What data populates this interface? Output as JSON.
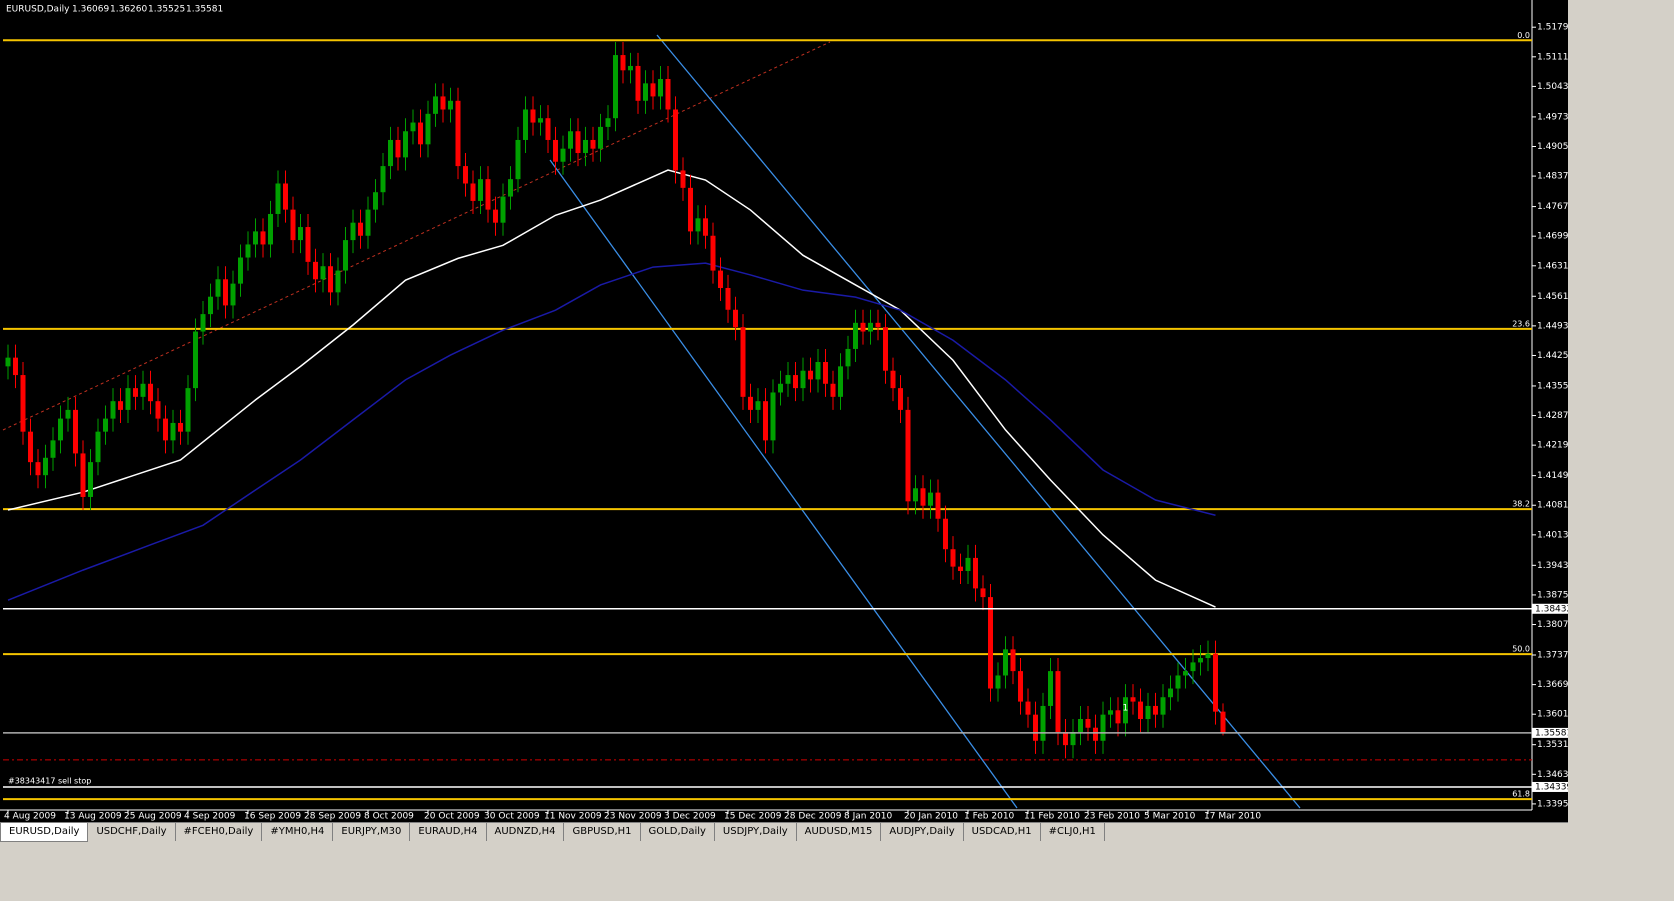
{
  "header": {
    "symbol": "EURUSD,Daily",
    "ohlc": [
      "1.36069",
      "1.36260",
      "1.35525",
      "1.35581"
    ]
  },
  "tabs": [
    "EURUSD,Daily",
    "USDCHF,Daily",
    "#FCEH0,Daily",
    "#YMH0,H4",
    "EURJPY,M30",
    "EURAUD,H4",
    "AUDNZD,H4",
    "GBPUSD,H1",
    "GOLD,Daily",
    "USDJPY,Daily",
    "AUDUSD,M15",
    "AUDJPY,Daily",
    "USDCAD,H1",
    "#CLJ0,H1"
  ],
  "active_tab": 0,
  "chart_data": {
    "type": "candlestick",
    "categories": [
      "4 Aug 2009",
      null,
      null,
      null,
      null,
      null,
      null,
      null,
      "13 Aug 2009",
      null,
      null,
      null,
      null,
      null,
      null,
      null,
      "25 Aug 2009",
      null,
      null,
      null,
      null,
      null,
      null,
      null,
      "4 Sep 2009",
      null,
      null,
      null,
      null,
      null,
      null,
      null,
      "16 Sep 2009",
      null,
      null,
      null,
      null,
      null,
      null,
      null,
      "28 Sep 2009",
      null,
      null,
      null,
      null,
      null,
      null,
      null,
      "8 Oct 2009",
      null,
      null,
      null,
      null,
      null,
      null,
      null,
      "20 Oct 2009",
      null,
      null,
      null,
      null,
      null,
      null,
      null,
      "30 Oct 2009",
      null,
      null,
      null,
      null,
      null,
      null,
      null,
      "11 Nov 2009",
      null,
      null,
      null,
      null,
      null,
      null,
      null,
      "23 Nov 2009",
      null,
      null,
      null,
      null,
      null,
      null,
      null,
      "3 Dec 2009",
      null,
      null,
      null,
      null,
      null,
      null,
      null,
      "15 Dec 2009",
      null,
      null,
      null,
      null,
      null,
      null,
      null,
      "28 Dec 2009",
      null,
      null,
      null,
      null,
      null,
      null,
      null,
      "8 Jan 2010",
      null,
      null,
      null,
      null,
      null,
      null,
      null,
      "20 Jan 2010",
      null,
      null,
      null,
      null,
      null,
      null,
      null,
      "1 Feb 2010",
      null,
      null,
      null,
      null,
      null,
      null,
      null,
      "11 Feb 2010",
      null,
      null,
      null,
      null,
      null,
      null,
      null,
      "23 Feb 2010",
      null,
      null,
      null,
      null,
      null,
      null,
      null,
      "5 Mar 2010",
      null,
      null,
      null,
      null,
      null,
      null,
      null,
      "17 Mar 2010",
      null,
      null
    ],
    "open": [
      1.44,
      1.442,
      1.438,
      1.425,
      1.418,
      1.415,
      1.419,
      1.423,
      1.428,
      1.43,
      1.42,
      1.41,
      1.418,
      1.425,
      1.428,
      1.432,
      1.43,
      1.435,
      1.433,
      1.436,
      1.432,
      1.428,
      1.423,
      1.427,
      1.425,
      1.435,
      1.448,
      1.452,
      1.456,
      1.46,
      1.454,
      1.459,
      1.465,
      1.468,
      1.471,
      1.468,
      1.475,
      1.482,
      1.476,
      1.469,
      1.472,
      1.464,
      1.46,
      1.463,
      1.457,
      1.462,
      1.469,
      1.473,
      1.47,
      1.476,
      1.48,
      1.486,
      1.492,
      1.488,
      1.494,
      1.496,
      1.491,
      1.498,
      1.502,
      1.499,
      1.501,
      1.486,
      1.482,
      1.478,
      1.483,
      1.476,
      1.473,
      1.479,
      1.483,
      1.492,
      1.499,
      1.496,
      1.497,
      1.492,
      1.487,
      1.49,
      1.494,
      1.489,
      1.492,
      1.49,
      1.495,
      1.497,
      1.5115,
      1.508,
      1.509,
      1.501,
      1.505,
      1.502,
      1.506,
      1.499,
      1.485,
      1.481,
      1.471,
      1.474,
      1.47,
      1.462,
      1.458,
      1.453,
      1.449,
      1.433,
      1.43,
      1.432,
      1.423,
      1.434,
      1.436,
      1.438,
      1.435,
      1.439,
      1.437,
      1.441,
      1.436,
      1.433,
      1.44,
      1.444,
      1.45,
      1.448,
      1.45,
      1.449,
      1.439,
      1.435,
      1.43,
      1.409,
      1.412,
      1.408,
      1.411,
      1.405,
      1.398,
      1.394,
      1.393,
      1.396,
      1.389,
      1.387,
      1.366,
      1.369,
      1.375,
      1.37,
      1.363,
      1.36,
      1.354,
      1.362,
      1.37,
      1.356,
      1.353,
      1.356,
      1.359,
      1.357,
      1.354,
      1.36,
      1.361,
      1.358,
      1.364,
      1.363,
      1.359,
      1.362,
      1.36,
      1.364,
      1.366,
      1.369,
      1.37,
      1.372,
      1.373,
      1.374,
      1.36069
    ],
    "high": [
      1.445,
      1.445,
      1.441,
      1.428,
      1.421,
      1.422,
      1.426,
      1.431,
      1.433,
      1.433,
      1.423,
      1.421,
      1.428,
      1.431,
      1.435,
      1.435,
      1.438,
      1.438,
      1.439,
      1.439,
      1.435,
      1.431,
      1.43,
      1.43,
      1.438,
      1.451,
      1.455,
      1.459,
      1.463,
      1.463,
      1.462,
      1.468,
      1.471,
      1.474,
      1.474,
      1.478,
      1.485,
      1.485,
      1.479,
      1.475,
      1.475,
      1.467,
      1.466,
      1.466,
      1.465,
      1.472,
      1.476,
      1.476,
      1.479,
      1.483,
      1.489,
      1.495,
      1.495,
      1.497,
      1.499,
      1.499,
      1.501,
      1.505,
      1.505,
      1.504,
      1.504,
      1.489,
      1.485,
      1.486,
      1.486,
      1.479,
      1.482,
      1.486,
      1.495,
      1.502,
      1.502,
      1.5,
      1.5,
      1.495,
      1.493,
      1.497,
      1.497,
      1.495,
      1.495,
      1.498,
      1.5,
      1.5145,
      1.5145,
      1.512,
      1.512,
      1.508,
      1.508,
      1.509,
      1.509,
      1.502,
      1.488,
      1.484,
      1.477,
      1.477,
      1.473,
      1.465,
      1.461,
      1.456,
      1.452,
      1.436,
      1.435,
      1.435,
      1.437,
      1.439,
      1.441,
      1.441,
      1.442,
      1.442,
      1.444,
      1.444,
      1.439,
      1.443,
      1.447,
      1.453,
      1.453,
      1.453,
      1.453,
      1.452,
      1.442,
      1.438,
      1.433,
      1.415,
      1.415,
      1.414,
      1.414,
      1.408,
      1.401,
      1.397,
      1.399,
      1.399,
      1.392,
      1.39,
      1.372,
      1.378,
      1.378,
      1.373,
      1.366,
      1.363,
      1.365,
      1.373,
      1.373,
      1.359,
      1.359,
      1.362,
      1.362,
      1.36,
      1.363,
      1.364,
      1.364,
      1.367,
      1.367,
      1.366,
      1.365,
      1.365,
      1.367,
      1.369,
      1.372,
      1.373,
      1.375,
      1.376,
      1.377,
      1.377,
      1.3626
    ],
    "low": [
      1.437,
      1.435,
      1.422,
      1.415,
      1.412,
      1.412,
      1.416,
      1.42,
      1.425,
      1.417,
      1.407,
      1.407,
      1.415,
      1.422,
      1.425,
      1.427,
      1.427,
      1.43,
      1.43,
      1.429,
      1.425,
      1.42,
      1.42,
      1.422,
      1.422,
      1.432,
      1.445,
      1.449,
      1.453,
      1.451,
      1.451,
      1.456,
      1.462,
      1.465,
      1.465,
      1.465,
      1.472,
      1.473,
      1.466,
      1.466,
      1.461,
      1.457,
      1.457,
      1.454,
      1.454,
      1.459,
      1.466,
      1.467,
      1.467,
      1.473,
      1.477,
      1.483,
      1.485,
      1.485,
      1.491,
      1.488,
      1.488,
      1.495,
      1.496,
      1.496,
      1.483,
      1.479,
      1.475,
      1.475,
      1.473,
      1.47,
      1.47,
      1.476,
      1.48,
      1.489,
      1.493,
      1.493,
      1.489,
      1.484,
      1.484,
      1.487,
      1.486,
      1.486,
      1.487,
      1.487,
      1.492,
      1.494,
      1.505,
      1.505,
      1.498,
      1.498,
      1.499,
      1.499,
      1.496,
      1.482,
      1.478,
      1.468,
      1.468,
      1.467,
      1.459,
      1.455,
      1.45,
      1.446,
      1.43,
      1.427,
      1.427,
      1.42,
      1.42,
      1.431,
      1.433,
      1.432,
      1.432,
      1.434,
      1.434,
      1.433,
      1.43,
      1.43,
      1.437,
      1.441,
      1.445,
      1.445,
      1.446,
      1.436,
      1.432,
      1.427,
      1.406,
      1.406,
      1.405,
      1.405,
      1.402,
      1.395,
      1.391,
      1.39,
      1.39,
      1.386,
      1.384,
      1.363,
      1.363,
      1.366,
      1.367,
      1.36,
      1.357,
      1.351,
      1.351,
      1.359,
      1.353,
      1.35,
      1.35,
      1.353,
      1.354,
      1.351,
      1.351,
      1.357,
      1.355,
      1.355,
      1.36,
      1.356,
      1.356,
      1.357,
      1.357,
      1.361,
      1.363,
      1.366,
      1.367,
      1.369,
      1.37,
      1.3577,
      1.35525
    ],
    "close": [
      1.442,
      1.438,
      1.425,
      1.418,
      1.415,
      1.419,
      1.423,
      1.428,
      1.43,
      1.42,
      1.41,
      1.418,
      1.425,
      1.428,
      1.432,
      1.43,
      1.435,
      1.433,
      1.436,
      1.432,
      1.428,
      1.423,
      1.427,
      1.425,
      1.435,
      1.448,
      1.452,
      1.456,
      1.46,
      1.454,
      1.459,
      1.465,
      1.468,
      1.471,
      1.468,
      1.475,
      1.482,
      1.476,
      1.469,
      1.472,
      1.464,
      1.46,
      1.463,
      1.457,
      1.462,
      1.469,
      1.473,
      1.47,
      1.476,
      1.48,
      1.486,
      1.492,
      1.488,
      1.494,
      1.496,
      1.491,
      1.498,
      1.502,
      1.499,
      1.501,
      1.486,
      1.482,
      1.478,
      1.483,
      1.476,
      1.473,
      1.479,
      1.483,
      1.492,
      1.499,
      1.496,
      1.497,
      1.492,
      1.487,
      1.49,
      1.494,
      1.489,
      1.492,
      1.49,
      1.495,
      1.497,
      1.5115,
      1.508,
      1.509,
      1.501,
      1.505,
      1.502,
      1.506,
      1.499,
      1.485,
      1.481,
      1.471,
      1.474,
      1.47,
      1.462,
      1.458,
      1.453,
      1.449,
      1.433,
      1.43,
      1.432,
      1.423,
      1.434,
      1.436,
      1.438,
      1.435,
      1.439,
      1.437,
      1.441,
      1.436,
      1.433,
      1.44,
      1.444,
      1.45,
      1.448,
      1.45,
      1.449,
      1.439,
      1.435,
      1.43,
      1.409,
      1.412,
      1.408,
      1.411,
      1.405,
      1.398,
      1.394,
      1.393,
      1.396,
      1.389,
      1.387,
      1.366,
      1.369,
      1.375,
      1.37,
      1.363,
      1.36,
      1.354,
      1.362,
      1.37,
      1.356,
      1.353,
      1.356,
      1.359,
      1.357,
      1.354,
      1.36,
      1.361,
      1.358,
      1.364,
      1.363,
      1.359,
      1.362,
      1.36,
      1.364,
      1.366,
      1.369,
      1.37,
      1.372,
      1.373,
      1.374,
      1.36069,
      1.35581
    ],
    "up_color": "#00a000",
    "down_color": "#ff0000",
    "ma": [
      {
        "color": "#ffffff",
        "x": [
          0,
          10,
          23,
          33,
          39,
          46,
          53,
          60,
          66,
          73,
          79,
          85,
          88,
          93,
          99,
          106,
          113,
          119,
          126,
          133,
          139,
          146,
          153,
          161
        ],
        "values": [
          1.407,
          1.4111,
          1.4185,
          1.4323,
          1.44,
          1.4495,
          1.4598,
          1.4648,
          1.4678,
          1.4747,
          1.4782,
          1.4828,
          1.4851,
          1.4828,
          1.4759,
          1.4655,
          1.4587,
          1.4529,
          1.4414,
          1.4254,
          1.4139,
          1.4013,
          1.3909,
          1.3847
        ]
      },
      {
        "color": "#1a1aa6",
        "x": [
          0,
          10,
          19,
          26,
          33,
          39,
          46,
          53,
          59,
          66,
          73,
          79,
          86,
          93,
          99,
          106,
          113,
          119,
          126,
          133,
          139,
          146,
          153,
          161
        ],
        "values": [
          1.3863,
          1.3932,
          1.399,
          1.4035,
          1.4116,
          1.4185,
          1.4277,
          1.4369,
          1.4426,
          1.4483,
          1.4529,
          1.4587,
          1.4628,
          1.4637,
          1.461,
          1.4575,
          1.4559,
          1.4529,
          1.446,
          1.4369,
          1.4277,
          1.4162,
          1.4093,
          1.4058
        ]
      }
    ],
    "levels": [
      {
        "label": "0.0",
        "value": 1.5149
      },
      {
        "label": "23.6",
        "value": 1.4486
      },
      {
        "label": "38.2",
        "value": 1.4072
      },
      {
        "label": "50.0",
        "value": 1.3739
      },
      {
        "label": "61.8",
        "value": 1.3406
      }
    ],
    "level_color": "#f5c400",
    "hlines": [
      {
        "value": 1.38432,
        "color": "#ffffff"
      },
      {
        "value": 1.35581,
        "color": "#b0b0b0"
      },
      {
        "value": 1.34339,
        "color": "#ffffff"
      }
    ],
    "orders": [
      {
        "label": "#38343417 sell stop",
        "value": 1.3496,
        "color": "#d00000"
      }
    ],
    "annotations": [
      {
        "text": "1",
        "index": 149,
        "value": 1.3615
      }
    ],
    "ylim": [
      1.3381,
      1.523
    ],
    "yticks": [
      {
        "value": 1.5179,
        "label": "1.51790"
      },
      {
        "value": 1.5111,
        "label": "1.51110"
      },
      {
        "value": 1.5043,
        "label": "1.50430"
      },
      {
        "value": 1.4973,
        "label": "1.49730"
      },
      {
        "value": 1.4905,
        "label": "1.49050"
      },
      {
        "value": 1.4837,
        "label": "1.48370"
      },
      {
        "value": 1.4767,
        "label": "1.47670"
      },
      {
        "value": 1.4699,
        "label": "1.46990"
      },
      {
        "value": 1.4631,
        "label": "1.46310"
      },
      {
        "value": 1.4561,
        "label": "1.45610"
      },
      {
        "value": 1.4493,
        "label": "1.44930"
      },
      {
        "value": 1.4425,
        "label": "1.44250"
      },
      {
        "value": 1.4355,
        "label": "1.43550"
      },
      {
        "value": 1.4287,
        "label": "1.42870"
      },
      {
        "value": 1.4219,
        "label": "1.42190"
      },
      {
        "value": 1.4149,
        "label": "1.41490"
      },
      {
        "value": 1.4081,
        "label": "1.40810"
      },
      {
        "value": 1.4013,
        "label": "1.40130"
      },
      {
        "value": 1.3943,
        "label": "1.39430"
      },
      {
        "value": 1.3875,
        "label": "1.38750"
      },
      {
        "value": 1.3807,
        "label": "1.38070"
      },
      {
        "value": 1.3737,
        "label": "1.37370"
      },
      {
        "value": 1.3669,
        "label": "1.36690"
      },
      {
        "value": 1.3601,
        "label": "1.36010"
      },
      {
        "value": 1.3531,
        "label": "1.35310"
      },
      {
        "value": 1.3463,
        "label": "1.34630"
      },
      {
        "value": 1.3395,
        "label": "1.33950"
      }
    ]
  }
}
